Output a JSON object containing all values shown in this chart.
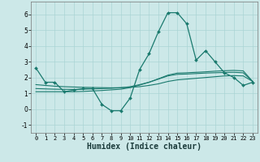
{
  "xlabel": "Humidex (Indice chaleur)",
  "x_values": [
    0,
    1,
    2,
    3,
    4,
    5,
    6,
    7,
    8,
    9,
    10,
    11,
    12,
    13,
    14,
    15,
    16,
    17,
    18,
    19,
    20,
    21,
    22,
    23
  ],
  "main_line": [
    2.6,
    1.7,
    1.7,
    1.1,
    1.2,
    1.3,
    1.3,
    0.3,
    -0.1,
    -0.1,
    0.7,
    2.5,
    3.5,
    4.9,
    6.1,
    6.1,
    5.4,
    3.1,
    3.7,
    3.0,
    2.3,
    2.0,
    1.5,
    1.7
  ],
  "trend_line1": [
    1.55,
    1.5,
    1.45,
    1.42,
    1.4,
    1.38,
    1.37,
    1.36,
    1.35,
    1.36,
    1.38,
    1.42,
    1.5,
    1.6,
    1.75,
    1.85,
    1.9,
    1.95,
    2.0,
    2.05,
    2.1,
    2.12,
    2.1,
    1.75
  ],
  "trend_line2": [
    1.3,
    1.28,
    1.26,
    1.25,
    1.25,
    1.26,
    1.28,
    1.3,
    1.32,
    1.35,
    1.42,
    1.55,
    1.7,
    1.9,
    2.1,
    2.2,
    2.22,
    2.25,
    2.28,
    2.3,
    2.32,
    2.33,
    2.3,
    1.75
  ],
  "trend_line3": [
    1.1,
    1.1,
    1.1,
    1.1,
    1.1,
    1.12,
    1.15,
    1.18,
    1.22,
    1.26,
    1.36,
    1.52,
    1.7,
    1.92,
    2.15,
    2.28,
    2.3,
    2.33,
    2.36,
    2.4,
    2.43,
    2.45,
    2.42,
    1.75
  ],
  "line_color": "#1a7a6e",
  "bg_color": "#cce8e8",
  "grid_color": "#aad4d4",
  "ylim": [
    -1.5,
    6.8
  ],
  "xlim": [
    -0.5,
    23.5
  ],
  "yticks": [
    -1,
    0,
    1,
    2,
    3,
    4,
    5,
    6
  ],
  "xticks": [
    0,
    1,
    2,
    3,
    4,
    5,
    6,
    7,
    8,
    9,
    10,
    11,
    12,
    13,
    14,
    15,
    16,
    17,
    18,
    19,
    20,
    21,
    22,
    23
  ]
}
